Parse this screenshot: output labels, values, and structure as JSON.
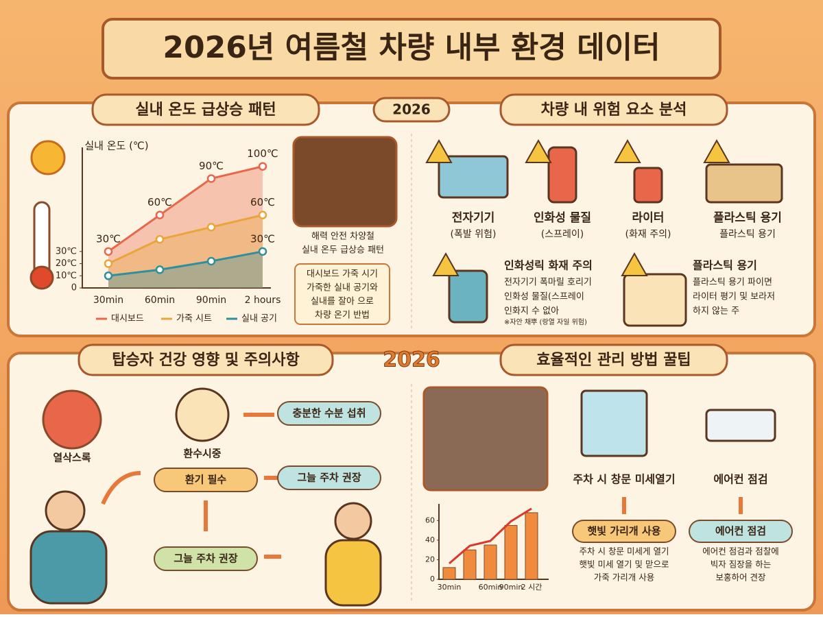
{
  "title": "2026년 여름철 차량 내부 환경 데이터",
  "center_badges": [
    "2026",
    "2026"
  ],
  "temperature_section": {
    "heading": "실내 온도 급상승 패턴",
    "chart_data": {
      "type": "line",
      "y_label": "실내 온도 (℃)",
      "categories": [
        "30min",
        "60min",
        "90min",
        "2 hours"
      ],
      "ylim": [
        0,
        110
      ],
      "yticks": [
        0,
        {
          "value": 10,
          "label": "10℃"
        },
        {
          "value": 20,
          "label": "20℃"
        },
        {
          "value": 30,
          "label": "30℃"
        }
      ],
      "series": [
        {
          "name": "대시보드",
          "color": "#e8674a",
          "values": [
            30,
            60,
            90,
            100
          ],
          "value_labels": [
            "30℃",
            "60℃",
            "90℃",
            "100℃"
          ]
        },
        {
          "name": "가죽 시트",
          "color": "#e9a53a",
          "values": [
            20,
            40,
            50,
            60
          ],
          "value_labels": [
            null,
            null,
            null,
            "60℃"
          ]
        },
        {
          "name": "실내 공기",
          "color": "#2f8f9d",
          "values": [
            10,
            15,
            22,
            30
          ],
          "value_labels": [
            null,
            null,
            null,
            "30℃"
          ]
        }
      ]
    },
    "photo_caption": [
      "해력 안전 차양철",
      "실내 온두 급상승 패턴"
    ],
    "note": [
      "대시보드 가죽 시기",
      "가죽한 실내 공기와",
      "실내를 잘아 으로",
      "차량 온기 반법"
    ]
  },
  "risk_section": {
    "heading": "차량 내 위험 요소 분석",
    "items": [
      {
        "label": "전자기기",
        "sub": "(폭발 위험)"
      },
      {
        "label": "인화성 물질",
        "sub": "(스프레이)"
      },
      {
        "label": "라이터",
        "sub": "(화재 주의)"
      },
      {
        "label": "플라스틱 용기",
        "sub": "플라스틱 용기"
      }
    ],
    "details": [
      {
        "title": "인화성릭 화재 주의",
        "lines": [
          "전자기기 폭마릴 호리기",
          "인화성 물질(스프레이",
          "인화지 수 없아"
        ],
        "footnote": "※자안 채뿌 (랑열 자일 위험)"
      },
      {
        "title": "플라스틱 용기",
        "lines": [
          "플라스틱 용기 파이면",
          "라이터 평기 및 보라저",
          "하지 않는 주"
        ]
      }
    ]
  },
  "health_section": {
    "heading": "탑승자 건강 영향 및 주의사항",
    "icon_label": "열삭스록",
    "person_label": "환수시중",
    "nodes": [
      "충분한 수분 섭취",
      "환기 필수",
      "그늘 주차 권장",
      "그늘 주차 권장"
    ]
  },
  "tips_section": {
    "heading": "효율적인 관리 방법 꿀팁",
    "chart_data": {
      "type": "bar",
      "categories": [
        "30min",
        null,
        "60min",
        "90min",
        "2 시간"
      ],
      "values": [
        12,
        30,
        35,
        55,
        68
      ],
      "color": "#f08a3c",
      "ylim": [
        0,
        70
      ],
      "yticks": [
        0,
        20,
        40,
        60
      ]
    },
    "tips": [
      {
        "label": "주차 시 창문 미세열기",
        "badge": "햇빛 가리개 사용",
        "lines": [
          "주차 시 창문 미세게 열기",
          "햇빛 미세 열기 및 맏으로",
          "가죽 가리개 사용"
        ]
      },
      {
        "label": "에어컨 점검",
        "badge": "에어컨 점검",
        "lines": [
          "에어컨 점검과 점찰에",
          "빅자 짐장을 하는",
          "보홍하어 견장"
        ]
      }
    ]
  }
}
